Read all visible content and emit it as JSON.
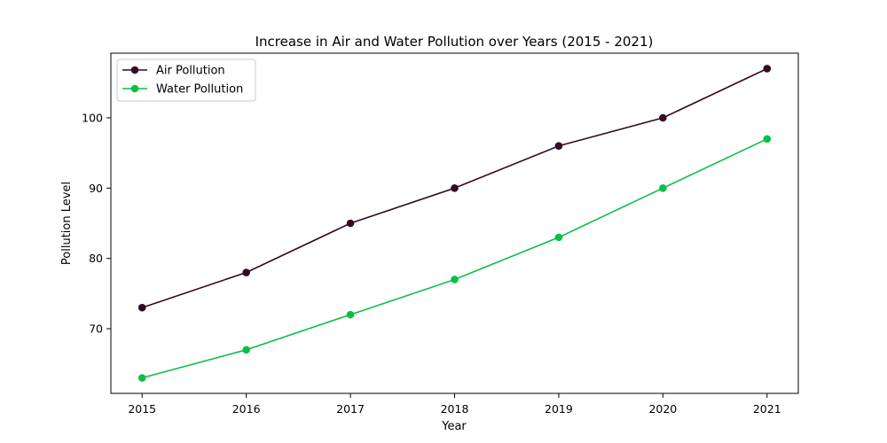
{
  "chart_data": {
    "type": "line",
    "title": "Increase in Air and Water Pollution over Years (2015 - 2021)",
    "xlabel": "Year",
    "ylabel": "Pollution Level",
    "x": [
      2015,
      2016,
      2017,
      2018,
      2019,
      2020,
      2021
    ],
    "x_ticks": [
      "2015",
      "2016",
      "2017",
      "2018",
      "2019",
      "2020",
      "2021"
    ],
    "xlim": [
      2014.7,
      2021.3
    ],
    "ylim": [
      60.8,
      109.2
    ],
    "y_ticks": [
      "70",
      "80",
      "90",
      "100"
    ],
    "y_tick_values": [
      70,
      80,
      90,
      100
    ],
    "grid": false,
    "legend_position": "top-left",
    "series": [
      {
        "name": "Air Pollution",
        "color": "#330a24",
        "marker": "circle",
        "values": [
          73,
          78,
          85,
          90,
          96,
          100,
          107
        ]
      },
      {
        "name": "Water Pollution",
        "color": "#0bbf46",
        "marker": "circle",
        "values": [
          63,
          67,
          72,
          77,
          83,
          90,
          97
        ]
      }
    ]
  }
}
